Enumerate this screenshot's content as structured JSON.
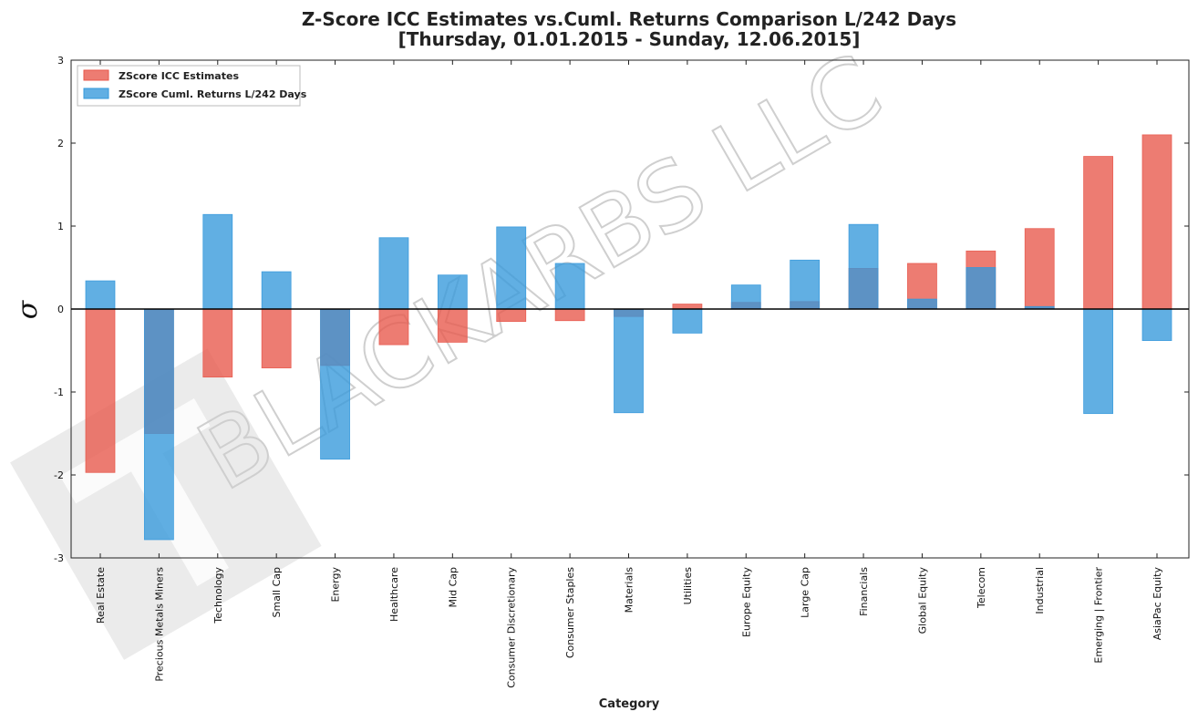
{
  "chart_data": {
    "type": "bar",
    "title": "Z-Score ICC Estimates vs.Cuml. Returns Comparison L/242 Days",
    "subtitle": "[Thursday, 01.01.2015 - Sunday, 12.06.2015]",
    "xlabel": "Category",
    "ylabel": "σ",
    "ylim": [
      -3,
      3
    ],
    "yticks": [
      -3,
      -2,
      -1,
      0,
      1,
      2,
      3
    ],
    "legend_position": "top-left",
    "watermark": "BLACKARBS LLC",
    "categories": [
      "Real Estate",
      "Precious Metals Miners",
      "Technology",
      "Small Cap",
      "Energy",
      "Healthcare",
      "Mid Cap",
      "Consumer Discretionary",
      "Consumer Staples",
      "Materials",
      "Utilities",
      "Europe Equity",
      "Large Cap",
      "Financials",
      "Global Equity",
      "Telecom",
      "Industrial",
      "Emerging | Frontier",
      "AsiaPac Equity"
    ],
    "series": [
      {
        "name": "ZScore ICC Estimates",
        "color": "#e8574a",
        "values": [
          -1.97,
          -1.5,
          -0.82,
          -0.71,
          -0.68,
          -0.43,
          -0.4,
          -0.15,
          -0.14,
          -0.09,
          0.06,
          0.08,
          0.09,
          0.49,
          0.55,
          0.7,
          0.97,
          1.84,
          2.1
        ]
      },
      {
        "name": "ZScore Cuml. Returns L/242 Days",
        "color": "#3498db",
        "values": [
          0.34,
          -2.78,
          1.14,
          0.45,
          -1.81,
          0.86,
          0.41,
          0.99,
          0.55,
          -1.25,
          -0.29,
          0.29,
          0.59,
          1.02,
          0.12,
          0.5,
          0.03,
          -1.26,
          -0.38
        ]
      }
    ]
  }
}
